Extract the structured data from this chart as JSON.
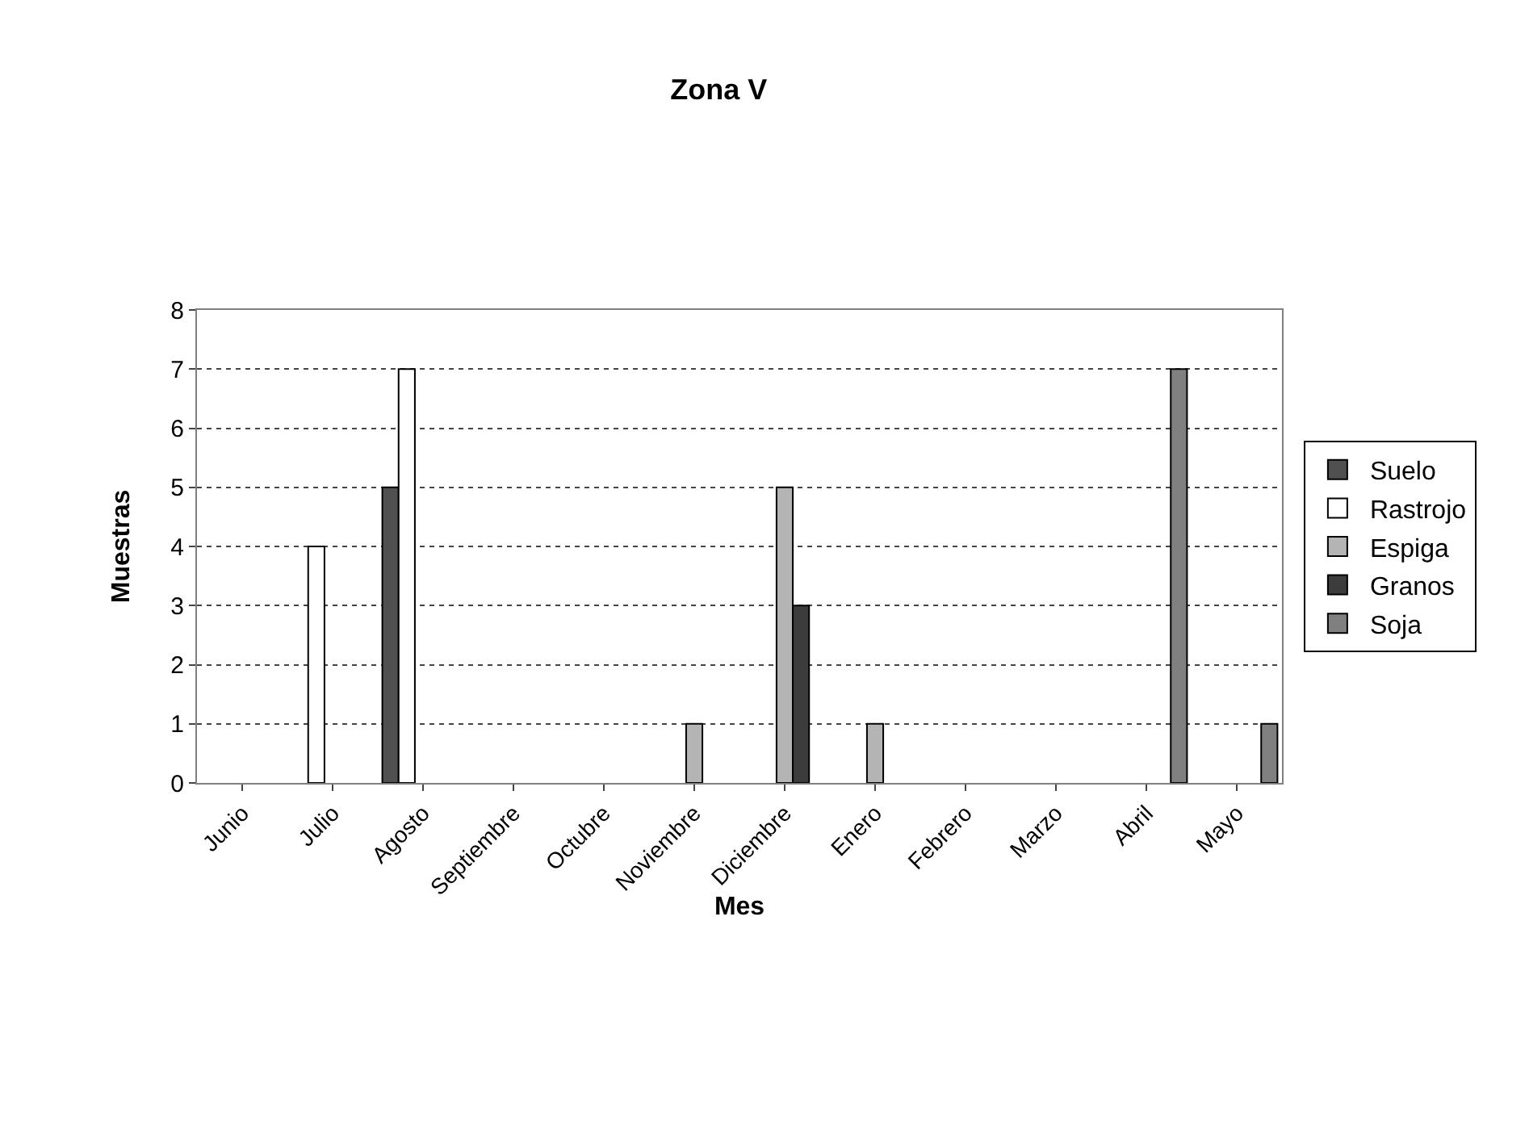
{
  "chart_data": {
    "type": "bar",
    "title": "Zona V",
    "xlabel": "Mes",
    "ylabel": "Muestras",
    "categories": [
      "Junio",
      "Julio",
      "Agosto",
      "Septiembre",
      "Octubre",
      "Noviembre",
      "Diciembre",
      "Enero",
      "Febrero",
      "Marzo",
      "Abril",
      "Mayo"
    ],
    "series": [
      {
        "name": "Suelo",
        "color": "#505050",
        "values": [
          null,
          null,
          5,
          null,
          null,
          null,
          null,
          null,
          null,
          null,
          null,
          null
        ]
      },
      {
        "name": "Rastrojo",
        "color": "#ffffff",
        "values": [
          null,
          4,
          7,
          null,
          null,
          null,
          null,
          null,
          null,
          null,
          null,
          null
        ]
      },
      {
        "name": "Espiga",
        "color": "#b4b4b4",
        "values": [
          null,
          null,
          null,
          null,
          null,
          1,
          5,
          1,
          null,
          null,
          null,
          null
        ]
      },
      {
        "name": "Granos",
        "color": "#3c3c3c",
        "values": [
          null,
          null,
          null,
          null,
          null,
          null,
          3,
          null,
          null,
          null,
          null,
          null
        ]
      },
      {
        "name": "Soja",
        "color": "#808080",
        "values": [
          null,
          null,
          null,
          null,
          null,
          null,
          null,
          null,
          null,
          null,
          7,
          1
        ]
      }
    ],
    "ylim": [
      0,
      8
    ],
    "yticks": [
      0,
      1,
      2,
      3,
      4,
      5,
      6,
      7,
      8
    ],
    "grid": "y",
    "legend": "right"
  }
}
